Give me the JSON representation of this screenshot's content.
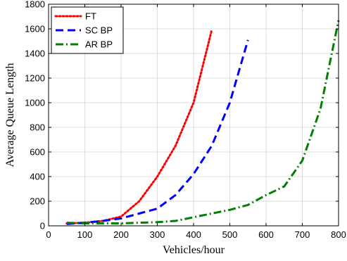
{
  "chart_data": {
    "type": "line",
    "xlabel": "Vehicles/hour",
    "ylabel": "Average Queue Length",
    "xlim": [
      0,
      800
    ],
    "ylim": [
      0,
      1800
    ],
    "xticks": [
      0,
      100,
      200,
      300,
      400,
      500,
      600,
      700,
      800
    ],
    "yticks": [
      0,
      200,
      400,
      600,
      800,
      1000,
      1200,
      1400,
      1600,
      1800
    ],
    "grid": true,
    "legend_position": "top-left",
    "series": [
      {
        "name": "FT",
        "color": "#ff0000",
        "style": "dotted",
        "x": [
          50,
          100,
          150,
          200,
          250,
          300,
          350,
          400,
          450
        ],
        "y": [
          20,
          25,
          40,
          75,
          200,
          400,
          650,
          1000,
          1590
        ]
      },
      {
        "name": "SC BP",
        "color": "#0000ff",
        "style": "dashed",
        "x": [
          50,
          100,
          150,
          200,
          250,
          300,
          350,
          400,
          450,
          500,
          550
        ],
        "y": [
          15,
          25,
          40,
          60,
          100,
          140,
          250,
          420,
          650,
          1000,
          1510
        ]
      },
      {
        "name": "AR BP",
        "color": "#008000",
        "style": "dashdot",
        "x": [
          50,
          100,
          150,
          200,
          250,
          300,
          350,
          400,
          450,
          500,
          550,
          600,
          650,
          700,
          750,
          800
        ],
        "y": [
          25,
          20,
          20,
          20,
          25,
          30,
          40,
          70,
          100,
          130,
          170,
          250,
          320,
          530,
          950,
          1670
        ]
      }
    ]
  }
}
